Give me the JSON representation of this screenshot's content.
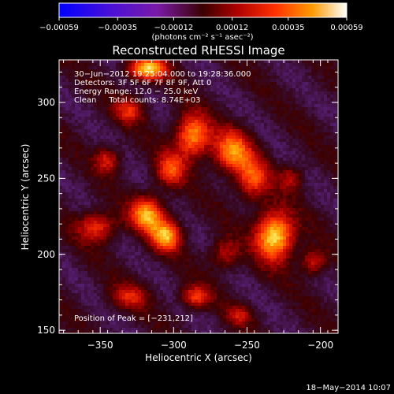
{
  "chart_data": {
    "type": "heatmap",
    "title": "Reconstructed RHESSI Image",
    "xlabel": "Heliocentric X (arcsec)",
    "ylabel": "Heliocentric Y (arcsec)",
    "xlim": [
      -378,
      -188
    ],
    "ylim": [
      148,
      328
    ],
    "x_ticks": [
      -350,
      -300,
      -250,
      -200
    ],
    "y_ticks": [
      150,
      200,
      250,
      300
    ],
    "x_tick_labels": [
      "−350",
      "−300",
      "−250",
      "−200"
    ],
    "y_tick_labels": [
      "150",
      "200",
      "250",
      "300"
    ],
    "colorbar": {
      "min": -0.00059,
      "max": 0.00059,
      "ticks": [
        -0.00059,
        -0.00035,
        -0.00012,
        0.00012,
        0.00035,
        0.00059
      ],
      "tick_labels": [
        "−0.00059",
        "−0.00035",
        "−0.00012",
        "0.00012",
        "0.00035",
        "0.00059"
      ],
      "unit_label": "(photons cm⁻² s⁻¹ asec⁻²)"
    },
    "annotations": [
      "30−Jun−2012 19:25:04.000 to 19:28:36.000",
      "Detectors: 3F 5F 6F 7F 8F 9F, Att 0",
      "Energy Range: 12.0 − 25.0 keV",
      "Clean     Total counts: 8.74E+03"
    ],
    "peak_label": "Position of Peak = [−231,212]",
    "peak": [
      -231,
      212
    ],
    "sources": [
      {
        "x": -231,
        "y": 212,
        "sx": 9,
        "sy": 11,
        "amp": 1.0
      },
      {
        "x": -246,
        "y": 250,
        "sx": 8,
        "sy": 10,
        "amp": 0.55
      },
      {
        "x": -260,
        "y": 268,
        "sx": 9,
        "sy": 10,
        "amp": 0.7
      },
      {
        "x": -287,
        "y": 278,
        "sx": 8,
        "sy": 10,
        "amp": 0.8
      },
      {
        "x": -302,
        "y": 256,
        "sx": 7,
        "sy": 8,
        "amp": 0.55
      },
      {
        "x": -318,
        "y": 226,
        "sx": 8,
        "sy": 8,
        "amp": 0.8
      },
      {
        "x": -305,
        "y": 212,
        "sx": 7,
        "sy": 7,
        "amp": 0.8
      },
      {
        "x": -352,
        "y": 218,
        "sx": 9,
        "sy": 7,
        "amp": 0.55
      },
      {
        "x": -318,
        "y": 322,
        "sx": 9,
        "sy": 5,
        "amp": 0.9
      },
      {
        "x": -330,
        "y": 295,
        "sx": 7,
        "sy": 6,
        "amp": 0.45
      },
      {
        "x": -345,
        "y": 262,
        "sx": 6,
        "sy": 6,
        "amp": 0.45
      },
      {
        "x": -330,
        "y": 172,
        "sx": 9,
        "sy": 6,
        "amp": 0.4
      },
      {
        "x": -285,
        "y": 172,
        "sx": 7,
        "sy": 5,
        "amp": 0.55
      },
      {
        "x": -265,
        "y": 200,
        "sx": 7,
        "sy": 7,
        "amp": 0.4
      },
      {
        "x": -205,
        "y": 195,
        "sx": 6,
        "sy": 6,
        "amp": 0.45
      },
      {
        "x": -220,
        "y": 250,
        "sx": 6,
        "sy": 6,
        "amp": 0.35
      },
      {
        "x": -255,
        "y": 160,
        "sx": 6,
        "sy": 5,
        "amp": 0.35
      }
    ]
  },
  "footer": {
    "timestamp": "18−May−2014 10:07"
  }
}
